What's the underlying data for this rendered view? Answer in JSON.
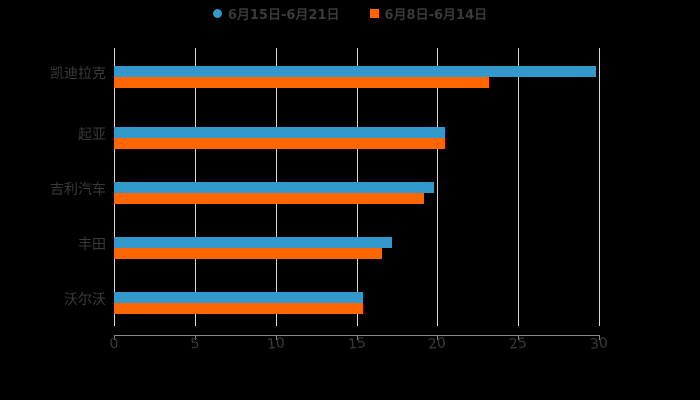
{
  "chart_data": {
    "type": "bar",
    "orientation": "horizontal",
    "title": "",
    "categories": [
      "凯迪拉克",
      "起亚",
      "吉利汽车",
      "丰田",
      "沃尔沃"
    ],
    "series": [
      {
        "name": "6月15日-6月21日",
        "color": "#3399cc",
        "values": [
          29.8,
          20.5,
          19.8,
          17.2,
          15.4
        ]
      },
      {
        "name": "6月8日-6月14日",
        "color": "#ff6600",
        "values": [
          23.2,
          20.5,
          19.2,
          16.6,
          15.4
        ]
      }
    ],
    "xlabel": "",
    "ylabel": "",
    "xlim": [
      0,
      30
    ],
    "x_ticks": [
      "0",
      "5",
      "10",
      "15",
      "20",
      "25",
      "30"
    ],
    "grid": true,
    "legend_position": "top"
  },
  "legend": {
    "items": [
      {
        "label": "6月15日-6月21日",
        "color": "#3399cc",
        "marker": "circle"
      },
      {
        "label": "6月8日-6月14日",
        "color": "#ff6600",
        "marker": "square"
      }
    ]
  }
}
